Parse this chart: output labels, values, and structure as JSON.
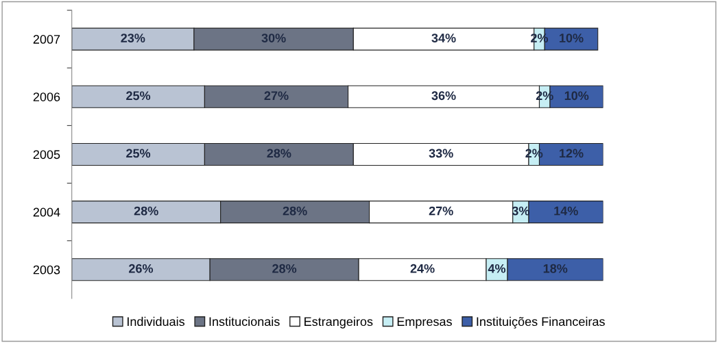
{
  "chart_data": {
    "type": "bar",
    "orientation": "horizontal",
    "stacked": true,
    "categories": [
      "2007",
      "2006",
      "2005",
      "2004",
      "2003"
    ],
    "series": [
      {
        "name": "Individuais",
        "color": "#b9c3d3",
        "values": [
          23,
          25,
          25,
          28,
          26
        ],
        "value_labels": [
          "23%",
          "25%",
          "25%",
          "28%",
          "26%"
        ]
      },
      {
        "name": "Institucionais",
        "color": "#6c7485",
        "values": [
          30,
          27,
          28,
          28,
          28
        ],
        "value_labels": [
          "30%",
          "27%",
          "28%",
          "28%",
          "28%"
        ]
      },
      {
        "name": "Estrangeiros",
        "color": "#ffffff",
        "values": [
          34,
          36,
          33,
          27,
          24
        ],
        "value_labels": [
          "34%",
          "36%",
          "33%",
          "27%",
          "24%"
        ]
      },
      {
        "name": "Empresas",
        "color": "#c6eef4",
        "values": [
          2,
          2,
          2,
          3,
          4
        ],
        "value_labels": [
          "2%",
          "2%",
          "2%",
          "3%",
          "4%"
        ]
      },
      {
        "name": "Instituições Financeiras",
        "color": "#3d5fa8",
        "values": [
          10,
          10,
          12,
          14,
          18
        ],
        "value_labels": [
          "10%",
          "10%",
          "12%",
          "14%",
          "18%"
        ]
      }
    ],
    "tick_labels": "y",
    "legend": "bottom",
    "grid": false
  }
}
